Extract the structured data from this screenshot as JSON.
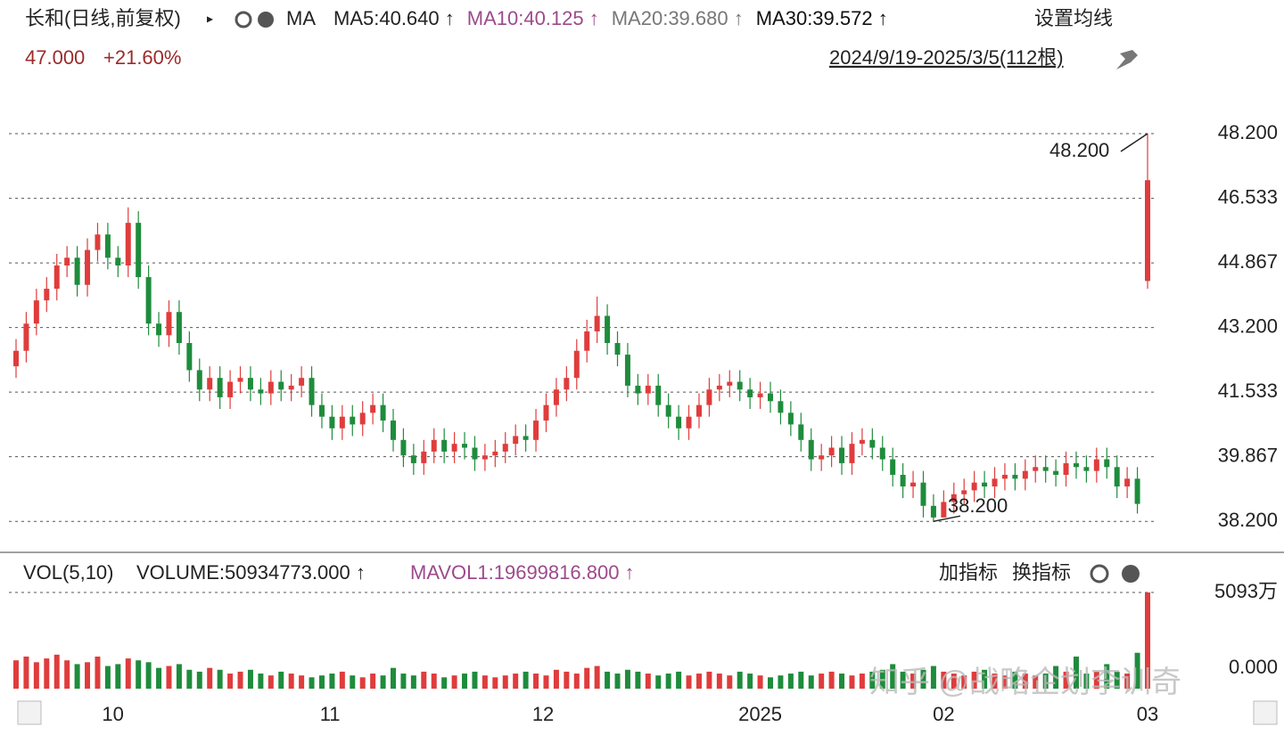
{
  "header": {
    "title": "长和(日线,前复权)",
    "indicator": "MA",
    "ma_legend": [
      {
        "text": "MA5:40.640 ↑",
        "color": "#222222"
      },
      {
        "text": "MA10:40.125 ↑",
        "color": "#9c4a8c"
      },
      {
        "text": "MA20:39.680 ↑",
        "color": "#777777"
      },
      {
        "text": "MA30:39.572 ↑",
        "color": "#111111"
      }
    ],
    "settings": "设置均线",
    "price": "47.000",
    "change": "+21.60%",
    "range": "2024/9/19-2025/3/5(112根)"
  },
  "volume_header": {
    "name": "VOL(5,10)",
    "volume": "VOLUME:50934773.000 ↑",
    "mavol": "MAVOL1:19699816.800 ↑",
    "add": "加指标",
    "switch": "换指标"
  },
  "watermark": "知乎 @战略企划李训奇",
  "chart_data": [
    {
      "type": "candlestick",
      "up_color": "#e03c3c",
      "down_color": "#1e8c3c",
      "open": [
        42.2,
        42.6,
        43.3,
        43.9,
        44.2,
        44.8,
        45.0,
        44.3,
        45.2,
        45.6,
        45.0,
        44.8,
        45.9,
        44.5,
        43.3,
        43.0,
        43.6,
        42.8,
        42.1,
        41.6,
        41.9,
        41.4,
        41.8,
        41.9,
        41.6,
        41.5,
        41.8,
        41.6,
        41.7,
        41.9,
        41.2,
        40.9,
        40.6,
        40.9,
        40.7,
        41.0,
        41.2,
        40.8,
        40.3,
        39.9,
        39.7,
        40.0,
        40.3,
        40.0,
        40.2,
        40.1,
        39.8,
        39.9,
        40.0,
        40.2,
        40.4,
        40.3,
        40.8,
        41.2,
        41.6,
        41.9,
        42.6,
        43.1,
        43.5,
        42.8,
        42.5,
        41.7,
        41.5,
        41.7,
        41.2,
        40.9,
        40.6,
        40.9,
        41.2,
        41.6,
        41.7,
        41.8,
        41.6,
        41.4,
        41.5,
        41.3,
        41.0,
        40.7,
        40.3,
        39.8,
        39.9,
        40.1,
        39.7,
        40.2,
        40.3,
        40.1,
        39.8,
        39.4,
        39.1,
        39.2,
        38.6,
        38.3,
        38.7,
        38.9,
        39.0,
        39.2,
        39.1,
        39.3,
        39.4,
        39.3,
        39.5,
        39.6,
        39.5,
        39.4,
        39.7,
        39.6,
        39.5,
        39.8,
        39.6,
        39.1,
        39.3,
        44.4
      ],
      "high": [
        42.9,
        43.6,
        44.2,
        44.5,
        45.1,
        45.3,
        45.3,
        45.5,
        45.9,
        45.9,
        45.3,
        46.3,
        46.2,
        44.8,
        43.6,
        43.9,
        43.9,
        43.1,
        42.4,
        42.2,
        42.2,
        42.1,
        42.2,
        42.2,
        41.9,
        42.1,
        42.1,
        42.0,
        42.2,
        42.2,
        41.5,
        41.2,
        41.2,
        41.2,
        41.3,
        41.5,
        41.5,
        41.1,
        40.6,
        40.2,
        40.3,
        40.6,
        40.6,
        40.5,
        40.5,
        40.4,
        40.2,
        40.3,
        40.5,
        40.7,
        40.7,
        41.1,
        41.5,
        41.9,
        42.2,
        42.9,
        43.4,
        44.0,
        43.8,
        43.1,
        42.8,
        42.0,
        42.0,
        42.0,
        41.5,
        41.2,
        41.2,
        41.5,
        41.9,
        42.0,
        42.1,
        42.1,
        41.9,
        41.8,
        41.8,
        41.6,
        41.3,
        41.0,
        40.6,
        40.2,
        40.4,
        40.4,
        40.5,
        40.6,
        40.6,
        40.4,
        40.1,
        39.7,
        39.5,
        39.5,
        38.9,
        39.0,
        39.2,
        39.3,
        39.5,
        39.5,
        39.6,
        39.7,
        39.7,
        39.8,
        39.9,
        39.9,
        39.8,
        40.0,
        40.0,
        39.9,
        40.1,
        40.1,
        39.9,
        39.6,
        39.6,
        48.2
      ],
      "low": [
        41.9,
        42.3,
        43.0,
        43.6,
        43.9,
        44.5,
        44.0,
        44.0,
        44.9,
        44.7,
        44.5,
        44.5,
        44.2,
        43.0,
        42.7,
        42.7,
        42.5,
        41.8,
        41.3,
        41.3,
        41.1,
        41.1,
        41.5,
        41.3,
        41.2,
        41.2,
        41.3,
        41.3,
        41.4,
        40.9,
        40.6,
        40.3,
        40.3,
        40.4,
        40.4,
        40.7,
        40.5,
        40.0,
        39.6,
        39.4,
        39.4,
        39.7,
        39.7,
        39.7,
        39.8,
        39.5,
        39.5,
        39.6,
        39.7,
        39.9,
        40.0,
        40.0,
        40.5,
        40.9,
        41.3,
        41.6,
        42.3,
        42.8,
        42.5,
        42.2,
        41.4,
        41.2,
        41.2,
        40.9,
        40.6,
        40.3,
        40.3,
        40.6,
        40.9,
        41.3,
        41.4,
        41.3,
        41.1,
        41.1,
        41.0,
        40.7,
        40.4,
        40.0,
        39.5,
        39.5,
        39.6,
        39.4,
        39.4,
        39.9,
        39.8,
        39.5,
        39.1,
        38.8,
        38.8,
        38.3,
        38.2,
        38.3,
        38.4,
        38.6,
        38.7,
        38.8,
        38.8,
        39.0,
        39.0,
        39.0,
        39.2,
        39.2,
        39.1,
        39.1,
        39.3,
        39.2,
        39.2,
        39.3,
        38.8,
        38.8,
        38.4,
        44.2
      ],
      "close": [
        42.6,
        43.3,
        43.9,
        44.2,
        44.8,
        45.0,
        44.3,
        45.2,
        45.6,
        45.0,
        44.8,
        45.9,
        44.5,
        43.3,
        43.0,
        43.6,
        42.8,
        42.1,
        41.6,
        41.9,
        41.4,
        41.8,
        41.9,
        41.6,
        41.5,
        41.8,
        41.6,
        41.7,
        41.9,
        41.2,
        40.9,
        40.6,
        40.9,
        40.7,
        41.0,
        41.2,
        40.8,
        40.3,
        39.9,
        39.7,
        40.0,
        40.3,
        40.0,
        40.2,
        40.1,
        39.8,
        39.9,
        40.0,
        40.2,
        40.4,
        40.3,
        40.8,
        41.2,
        41.6,
        41.9,
        42.6,
        43.1,
        43.5,
        42.8,
        42.5,
        41.7,
        41.5,
        41.7,
        41.2,
        40.9,
        40.6,
        40.9,
        41.2,
        41.6,
        41.7,
        41.8,
        41.6,
        41.4,
        41.5,
        41.3,
        41.0,
        40.7,
        40.3,
        39.8,
        39.9,
        40.1,
        39.7,
        40.2,
        40.3,
        40.1,
        39.8,
        39.4,
        39.1,
        39.2,
        38.6,
        38.3,
        38.7,
        38.9,
        39.0,
        39.2,
        39.1,
        39.3,
        39.4,
        39.3,
        39.5,
        39.6,
        39.5,
        39.4,
        39.7,
        39.6,
        39.5,
        39.8,
        39.6,
        39.1,
        39.3,
        38.65,
        47.0
      ],
      "ylim": [
        37.4,
        49.35
      ],
      "yticks": [
        {
          "value": 48.2,
          "label": "48.200"
        },
        46.533,
        44.867,
        {
          "value": 43.2,
          "label": "43.200"
        },
        41.533,
        39.867,
        {
          "value": 38.2,
          "label": "38.200"
        }
      ],
      "xlim": [
        -0.5,
        111.5
      ],
      "xticks": [
        {
          "value": 9.5,
          "label": "10"
        },
        {
          "value": 30.8,
          "label": "11"
        },
        {
          "value": 51.7,
          "label": "12"
        },
        {
          "value": 73,
          "label": "2025"
        },
        {
          "value": 91,
          "label": "02"
        },
        {
          "value": 111,
          "label": "03"
        }
      ],
      "annotations": [
        {
          "text": "48.200",
          "value": 48.2
        },
        {
          "text": "38.200",
          "value": 38.2
        }
      ],
      "grid": true
    },
    {
      "type": "bar",
      "values": [
        1500,
        1700,
        1400,
        1600,
        1800,
        1500,
        1300,
        1400,
        1700,
        1200,
        1300,
        1600,
        1500,
        1400,
        1100,
        1200,
        1300,
        1000,
        900,
        1100,
        1000,
        800,
        900,
        1000,
        800,
        700,
        900,
        800,
        700,
        600,
        700,
        800,
        900,
        700,
        600,
        800,
        700,
        1100,
        800,
        700,
        900,
        800,
        600,
        700,
        800,
        900,
        700,
        600,
        700,
        800,
        900,
        800,
        700,
        1000,
        900,
        800,
        1100,
        1200,
        900,
        800,
        1000,
        900,
        800,
        700,
        800,
        900,
        700,
        800,
        900,
        800,
        700,
        900,
        800,
        700,
        600,
        700,
        800,
        900,
        700,
        800,
        900,
        800,
        700,
        800,
        900,
        1000,
        1300,
        900,
        800,
        1000,
        1200,
        900,
        800,
        700,
        900,
        1000,
        800,
        700,
        900,
        800,
        700,
        800,
        1200,
        900,
        1700,
        800,
        900,
        1300,
        900,
        800,
        1900,
        5093.4773
      ],
      "ylim": [
        0,
        5093.4773
      ],
      "yticks": [
        {
          "value": 0,
          "label": "0.000"
        },
        {
          "value": 5093.4773,
          "label": "5093万"
        }
      ]
    }
  ]
}
